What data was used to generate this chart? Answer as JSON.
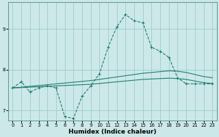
{
  "xlabel": "Humidex (Indice chaleur)",
  "ylabel": "",
  "background_color": "#cce8e8",
  "grid_color": "#99cccc",
  "line_color": "#1a7a6e",
  "xlim": [
    -0.5,
    23.5
  ],
  "ylim": [
    6.75,
    9.65
  ],
  "yticks": [
    7,
    8,
    9
  ],
  "xticks": [
    0,
    1,
    2,
    3,
    4,
    5,
    6,
    7,
    8,
    9,
    10,
    11,
    12,
    13,
    14,
    15,
    16,
    17,
    18,
    19,
    20,
    21,
    22,
    23
  ],
  "line1_x": [
    0,
    1,
    2,
    3,
    4,
    5,
    6,
    7,
    8,
    9,
    10,
    11,
    12,
    13,
    14,
    15,
    16,
    17,
    18,
    19,
    20,
    21,
    22,
    23
  ],
  "line1_y": [
    7.55,
    7.7,
    7.45,
    7.55,
    7.6,
    7.55,
    6.85,
    6.8,
    7.35,
    7.6,
    7.9,
    8.55,
    9.05,
    9.35,
    9.2,
    9.15,
    8.55,
    8.45,
    8.3,
    7.8,
    7.65,
    7.65,
    7.65,
    7.65
  ],
  "line2_x": [
    0,
    1,
    2,
    3,
    4,
    5,
    6,
    7,
    8,
    9,
    10,
    11,
    12,
    13,
    14,
    15,
    16,
    17,
    18,
    19,
    20,
    21,
    22,
    23
  ],
  "line2_y": [
    7.55,
    7.57,
    7.59,
    7.61,
    7.63,
    7.65,
    7.67,
    7.69,
    7.71,
    7.73,
    7.76,
    7.79,
    7.82,
    7.85,
    7.88,
    7.91,
    7.93,
    7.95,
    7.97,
    7.96,
    7.93,
    7.88,
    7.83,
    7.8
  ],
  "line3_x": [
    0,
    1,
    2,
    3,
    4,
    5,
    6,
    7,
    8,
    9,
    10,
    11,
    12,
    13,
    14,
    15,
    16,
    17,
    18,
    19,
    20,
    21,
    22,
    23
  ],
  "line3_y": [
    7.55,
    7.56,
    7.57,
    7.58,
    7.59,
    7.6,
    7.61,
    7.62,
    7.63,
    7.64,
    7.66,
    7.68,
    7.7,
    7.72,
    7.74,
    7.76,
    7.77,
    7.78,
    7.79,
    7.78,
    7.76,
    7.72,
    7.68,
    7.66
  ],
  "tick_fontsize": 5.0,
  "xlabel_fontsize": 6.5
}
